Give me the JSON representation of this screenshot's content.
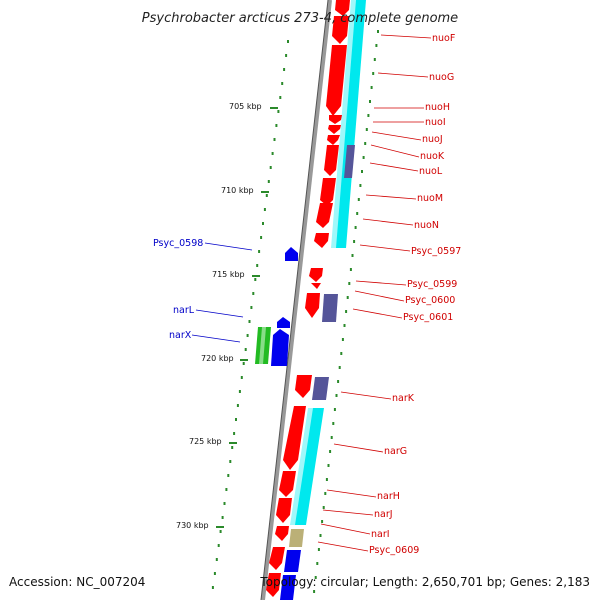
{
  "title": "Psychrobacter arcticus 273-4, complete genome",
  "footer": {
    "accession": "Accession: NC_007204",
    "topology": "Topology: circular; Length: 2,650,701 bp; Genes: 2,183"
  },
  "kbp_labels": [
    "705 kbp",
    "710 kbp",
    "715 kbp",
    "720 kbp",
    "725 kbp",
    "730 kbp"
  ],
  "gene_labels_right": [
    "nuoF",
    "nuoG",
    "nuoH",
    "nuoI",
    "nuoJ",
    "nuoK",
    "nuoL",
    "nuoM",
    "nuoN",
    "Psyc_0597",
    "Psyc_0599",
    "Psyc_0600",
    "Psyc_0601",
    "narK",
    "narG",
    "narH",
    "narJ",
    "narI",
    "Psyc_0609"
  ],
  "gene_labels_left": [
    "Psyc_0598",
    "narL",
    "narX"
  ],
  "colors": {
    "forward_gene": "#ff0000",
    "reverse_gene": "#0000ee",
    "cds_band": "#00e8ee",
    "domain_purple": "#555599",
    "regulator_green": "#22bb22",
    "khaki": "#bbb077",
    "backbone": "#888888",
    "gc_dots": "#2b8a2b",
    "right_label": "#d00000",
    "left_label": "#0000c8"
  }
}
